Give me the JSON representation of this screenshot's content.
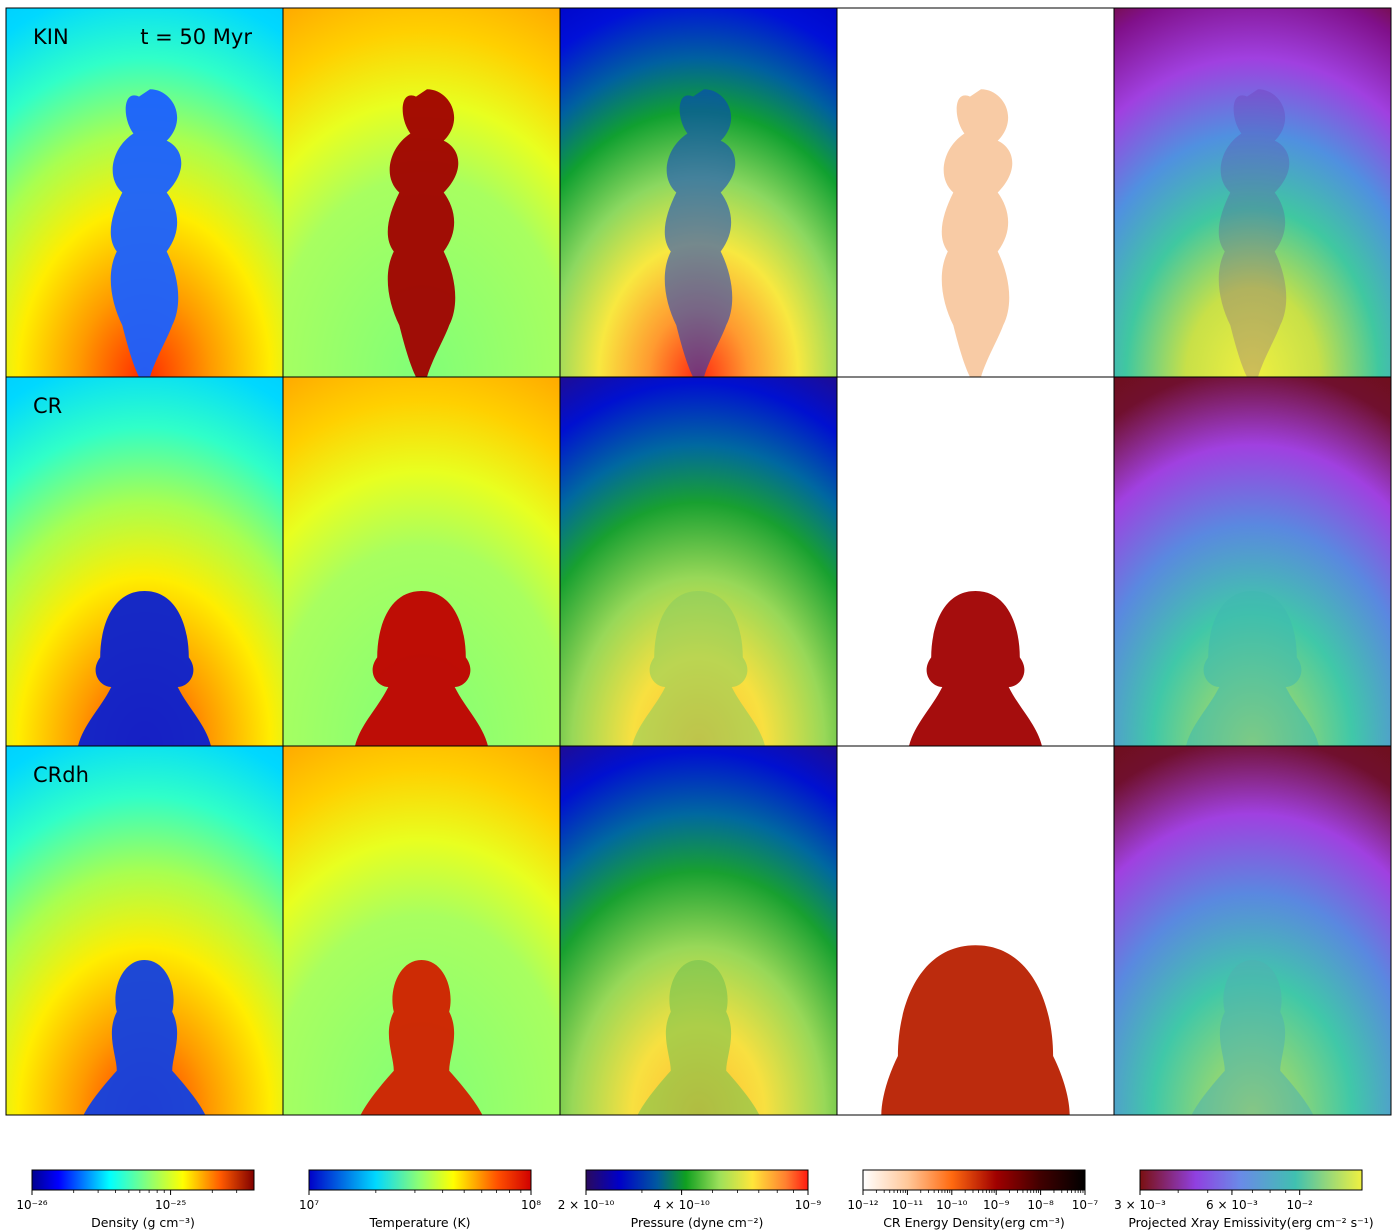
{
  "figure": {
    "rows": [
      {
        "label": "KIN",
        "time": "t = 50 Myr"
      },
      {
        "label": "CR",
        "time": ""
      },
      {
        "label": "CRdh",
        "time": ""
      }
    ],
    "columns": [
      "Density",
      "Temperature",
      "Pressure",
      "CR Energy Density",
      "Projected Xray Emissivity"
    ]
  },
  "colorbars": [
    {
      "label": "Density (g cm⁻³)",
      "colormap": "jet",
      "scale": "log",
      "range": [
        1e-26,
        4e-25
      ],
      "ticks": [
        {
          "text": "10⁻²⁶",
          "value": 1e-26
        },
        {
          "text": "10⁻²⁵",
          "value": 1e-25
        }
      ]
    },
    {
      "label": "Temperature (K)",
      "colormap": "jet",
      "scale": "log",
      "range": [
        10000000.0,
        100000000.0
      ],
      "ticks": [
        {
          "text": "10⁷",
          "value": 10000000.0
        },
        {
          "text": "10⁸",
          "value": 100000000.0
        }
      ]
    },
    {
      "label": "Pressure (dyne cm⁻²)",
      "colormap": "gist_ncar-like",
      "scale": "log",
      "range": [
        2e-10,
        1e-09
      ],
      "ticks": [
        {
          "text": "2 × 10⁻¹⁰",
          "value": 2e-10
        },
        {
          "text": "4 × 10⁻¹⁰",
          "value": 4e-10
        },
        {
          "text": "10⁻⁹",
          "value": 1e-09
        }
      ]
    },
    {
      "label": "CR Energy Density(erg cm⁻³)",
      "colormap": "gist_heat_r",
      "scale": "log",
      "range": [
        1e-12,
        1e-07
      ],
      "ticks": [
        {
          "text": "10⁻¹²",
          "value": 1e-12
        },
        {
          "text": "10⁻¹¹",
          "value": 1e-11
        },
        {
          "text": "10⁻¹⁰",
          "value": 1e-10
        },
        {
          "text": "10⁻⁹",
          "value": 1e-09
        },
        {
          "text": "10⁻⁸",
          "value": 1e-08
        },
        {
          "text": "10⁻⁷",
          "value": 1e-07
        }
      ]
    },
    {
      "label": "Projected Xray Emissivity(erg cm⁻² s⁻¹)",
      "colormap": "viridis-like",
      "scale": "log",
      "range": [
        0.003,
        0.016
      ],
      "ticks": [
        {
          "text": "3 × 10⁻³",
          "value": 0.003
        },
        {
          "text": "6 × 10⁻³",
          "value": 0.006
        },
        {
          "text": "10⁻²",
          "value": 0.01
        }
      ]
    }
  ]
}
